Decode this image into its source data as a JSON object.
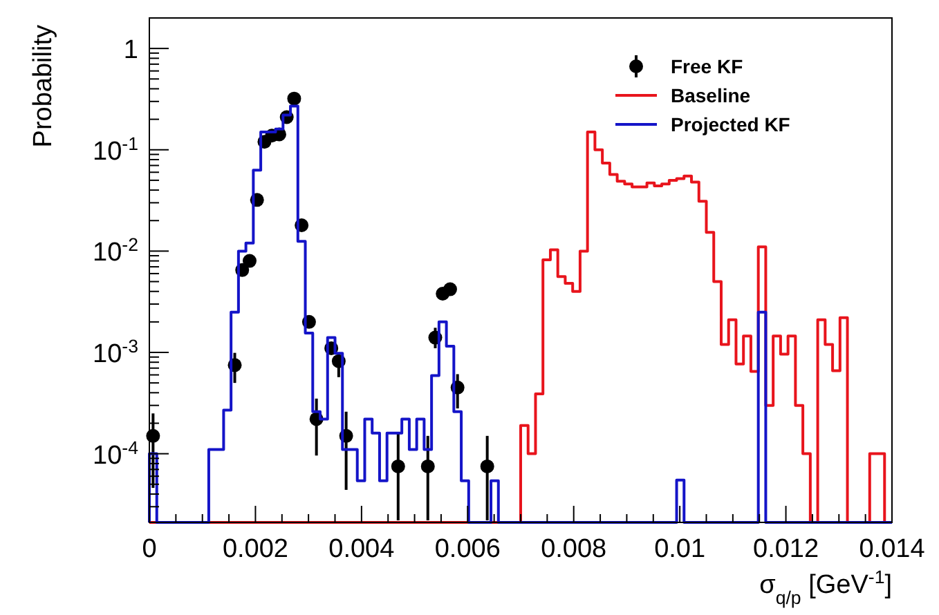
{
  "chart_data": {
    "type": "histogram",
    "xlabel": "σ$_{q/p}$ [GeV$^{-1}$]",
    "ylabel": "Probability",
    "log": "y",
    "grid": false,
    "legend": "top right",
    "xlim": [
      0,
      0.014
    ],
    "ylim": [
      2.1e-05,
      2
    ],
    "xticks": [
      0,
      {
        "value": 0.0005,
        "label": null
      },
      {
        "value": 0.001,
        "label": null
      },
      {
        "value": 0.0015,
        "label": null
      },
      0.002,
      {
        "value": 0.0025,
        "label": null
      },
      {
        "value": 0.003,
        "label": null
      },
      {
        "value": 0.0035,
        "label": null
      },
      0.004,
      {
        "value": 0.0045,
        "label": null
      },
      {
        "value": 0.005,
        "label": null
      },
      {
        "value": 0.0055,
        "label": null
      },
      0.006,
      {
        "value": 0.0065,
        "label": null
      },
      {
        "value": 0.007,
        "label": null
      },
      {
        "value": 0.0075,
        "label": null
      },
      0.008,
      {
        "value": 0.0085,
        "label": null
      },
      {
        "value": 0.009,
        "label": null
      },
      {
        "value": 0.0095,
        "label": null
      },
      0.01,
      {
        "value": 0.0105,
        "label": null
      },
      {
        "value": 0.011,
        "label": null
      },
      {
        "value": 0.0115,
        "label": null
      },
      0.012,
      {
        "value": 0.0125,
        "label": null
      },
      {
        "value": 0.013,
        "label": null
      },
      {
        "value": 0.0135,
        "label": null
      },
      0.014
    ],
    "yticks": [
      {
        "value": 3e-05,
        "label": null
      },
      {
        "value": 4e-05,
        "label": null
      },
      {
        "value": 5e-05,
        "label": null
      },
      {
        "value": 6e-05,
        "label": null
      },
      {
        "value": 7e-05,
        "label": null
      },
      {
        "value": 8e-05,
        "label": null
      },
      {
        "value": 9e-05,
        "label": null
      },
      {
        "value": 0.0001,
        "label": "10$^{-4}$"
      },
      {
        "value": 0.0002,
        "label": null
      },
      {
        "value": 0.0003,
        "label": null
      },
      {
        "value": 0.0004,
        "label": null
      },
      {
        "value": 0.0005,
        "label": null
      },
      {
        "value": 0.0006,
        "label": null
      },
      {
        "value": 0.0007,
        "label": null
      },
      {
        "value": 0.0008,
        "label": null
      },
      {
        "value": 0.0009,
        "label": null
      },
      {
        "value": 0.001,
        "label": "10$^{-3}$"
      },
      {
        "value": 0.002,
        "label": null
      },
      {
        "value": 0.003,
        "label": null
      },
      {
        "value": 0.004,
        "label": null
      },
      {
        "value": 0.005,
        "label": null
      },
      {
        "value": 0.006,
        "label": null
      },
      {
        "value": 0.007,
        "label": null
      },
      {
        "value": 0.008,
        "label": null
      },
      {
        "value": 0.009,
        "label": null
      },
      {
        "value": 0.01,
        "label": "10$^{-2}$"
      },
      {
        "value": 0.02,
        "label": null
      },
      {
        "value": 0.03,
        "label": null
      },
      {
        "value": 0.04,
        "label": null
      },
      {
        "value": 0.05,
        "label": null
      },
      {
        "value": 0.06,
        "label": null
      },
      {
        "value": 0.07,
        "label": null
      },
      {
        "value": 0.08,
        "label": null
      },
      {
        "value": 0.09,
        "label": null
      },
      {
        "value": 0.1,
        "label": "10$^{-1}$"
      },
      {
        "value": 0.2,
        "label": null
      },
      {
        "value": 0.3,
        "label": null
      },
      {
        "value": 0.4,
        "label": null
      },
      {
        "value": 0.5,
        "label": null
      },
      {
        "value": 0.6,
        "label": null
      },
      {
        "value": 0.7,
        "label": null
      },
      {
        "value": 0.8,
        "label": null
      },
      {
        "value": 0.9,
        "label": null
      },
      1
    ],
    "bins": [
      0,
      0.00014,
      0.00028,
      0.00042,
      0.00056,
      0.0007,
      0.00084,
      0.00098,
      0.00112,
      0.00126,
      0.0014,
      0.00154,
      0.00168,
      0.00182,
      0.00196,
      0.0021,
      0.00224,
      0.00238,
      0.00252,
      0.00266,
      0.0028,
      0.00294,
      0.00308,
      0.00322,
      0.00336,
      0.0035,
      0.00364,
      0.00378,
      0.00392,
      0.00406,
      0.0042,
      0.00434,
      0.00448,
      0.00462,
      0.00476,
      0.0049,
      0.00504,
      0.00518,
      0.00532,
      0.00546,
      0.0056,
      0.00574,
      0.00588,
      0.00602,
      0.00616,
      0.0063,
      0.00644,
      0.00658,
      0.00672,
      0.00686,
      0.007,
      0.00714,
      0.00728,
      0.00742,
      0.00756,
      0.0077,
      0.00784,
      0.00798,
      0.00812,
      0.00826,
      0.0084,
      0.00854,
      0.00868,
      0.00882,
      0.00896,
      0.0091,
      0.00924,
      0.00938,
      0.00952,
      0.00966,
      0.0098,
      0.00994,
      0.01008,
      0.01022,
      0.01036,
      0.0105,
      0.01064,
      0.01078,
      0.01092,
      0.01106,
      0.0112,
      0.01134,
      0.01148,
      0.01162,
      0.01176,
      0.0119,
      0.01204,
      0.01218,
      0.01232,
      0.01246,
      0.0126,
      0.01274,
      0.01288,
      0.01302,
      0.01316,
      0.0133,
      0.01344,
      0.01358,
      0.01372,
      0.01386,
      0.014
    ],
    "series": [
      {
        "name": "Free KF",
        "type": "scatter",
        "color": "#000000",
        "marker": "circle",
        "x": [
          7e-05,
          0.00161,
          0.00175,
          0.00189,
          0.00203,
          0.00217,
          0.00231,
          0.00245,
          0.00259,
          0.00273,
          0.00287,
          0.00301,
          0.00315,
          0.00343,
          0.00357,
          0.00371,
          0.00469,
          0.00525,
          0.00539,
          0.00553,
          0.00567,
          0.00581,
          0.00637
        ],
        "values": [
          0.00015,
          0.00075,
          0.0065,
          0.008,
          0.032,
          0.12,
          0.138,
          0.142,
          0.21,
          0.32,
          0.018,
          0.002,
          0.00022,
          0.0011,
          0.00082,
          0.00015,
          7.5e-05,
          7.5e-05,
          0.0014,
          0.0038,
          0.0042,
          0.00045,
          7.5e-05
        ],
        "errors": [
          [
            4.6e-05,
            0.00025
          ],
          [
            0.0005,
            0.00099
          ],
          null,
          null,
          null,
          null,
          null,
          null,
          null,
          null,
          null,
          null,
          [
            9.6e-05,
            0.00035
          ],
          null,
          [
            0.00057,
            0.001
          ],
          [
            4.4e-05,
            0.00026
          ],
          [
            2.2e-05,
            0.00016
          ],
          [
            2.2e-05,
            0.00015
          ],
          [
            0.0011,
            0.00175
          ],
          null,
          null,
          [
            0.00028,
            0.00061
          ],
          [
            2.2e-05,
            0.00015
          ]
        ]
      },
      {
        "name": "Baseline",
        "color": "#e8141c",
        "values": [
          null,
          null,
          null,
          null,
          null,
          null,
          null,
          null,
          null,
          null,
          null,
          null,
          null,
          null,
          null,
          null,
          null,
          null,
          null,
          null,
          null,
          null,
          null,
          null,
          null,
          null,
          null,
          null,
          null,
          null,
          null,
          null,
          null,
          null,
          null,
          null,
          null,
          null,
          null,
          null,
          null,
          null,
          null,
          null,
          null,
          null,
          null,
          null,
          null,
          null,
          0.00019,
          0.0001,
          0.00039,
          0.0082,
          0.0103,
          0.0056,
          0.0048,
          0.004,
          0.01,
          0.15,
          0.1,
          0.074,
          0.057,
          0.049,
          0.046,
          0.043,
          0.043,
          0.047,
          0.044,
          0.046,
          0.05,
          0.052,
          0.055,
          0.048,
          0.031,
          0.0153,
          0.005,
          0.0012,
          0.0021,
          0.00077,
          0.00145,
          0.00065,
          0.011,
          0.0003,
          0.00145,
          0.00096,
          0.00145,
          0.0003,
          0.0001,
          null,
          0.0021,
          0.0012,
          0.00066,
          0.0022,
          null,
          null,
          null,
          0.0001,
          0.0001,
          null
        ]
      },
      {
        "name": "Projected KF",
        "color": "#1414c8",
        "values": [
          0.0001,
          null,
          null,
          null,
          null,
          null,
          null,
          null,
          0.00011,
          0.00011,
          0.00027,
          0.0025,
          0.01,
          0.012,
          0.063,
          0.15,
          0.15,
          0.16,
          0.22,
          0.27,
          0.0125,
          0.00155,
          0.00026,
          0.00022,
          0.0014,
          0.00098,
          0.00011,
          0.00011,
          5.4e-05,
          0.00022,
          0.00016,
          5.4e-05,
          0.00016,
          0.00016,
          0.00022,
          0.00011,
          0.00022,
          0.00011,
          0.00059,
          0.002,
          0.00115,
          0.00026,
          5.4e-05,
          null,
          null,
          null,
          5.4e-05,
          null,
          null,
          null,
          null,
          null,
          null,
          null,
          null,
          null,
          null,
          null,
          null,
          null,
          null,
          null,
          null,
          null,
          null,
          null,
          null,
          null,
          null,
          null,
          null,
          5.5e-05,
          null,
          null,
          null,
          null,
          null,
          null,
          null,
          null,
          null,
          null,
          0.0025,
          null,
          null,
          null,
          null,
          null,
          null,
          null,
          null,
          null,
          null,
          null,
          null,
          null,
          null,
          null,
          null,
          null
        ]
      }
    ]
  }
}
